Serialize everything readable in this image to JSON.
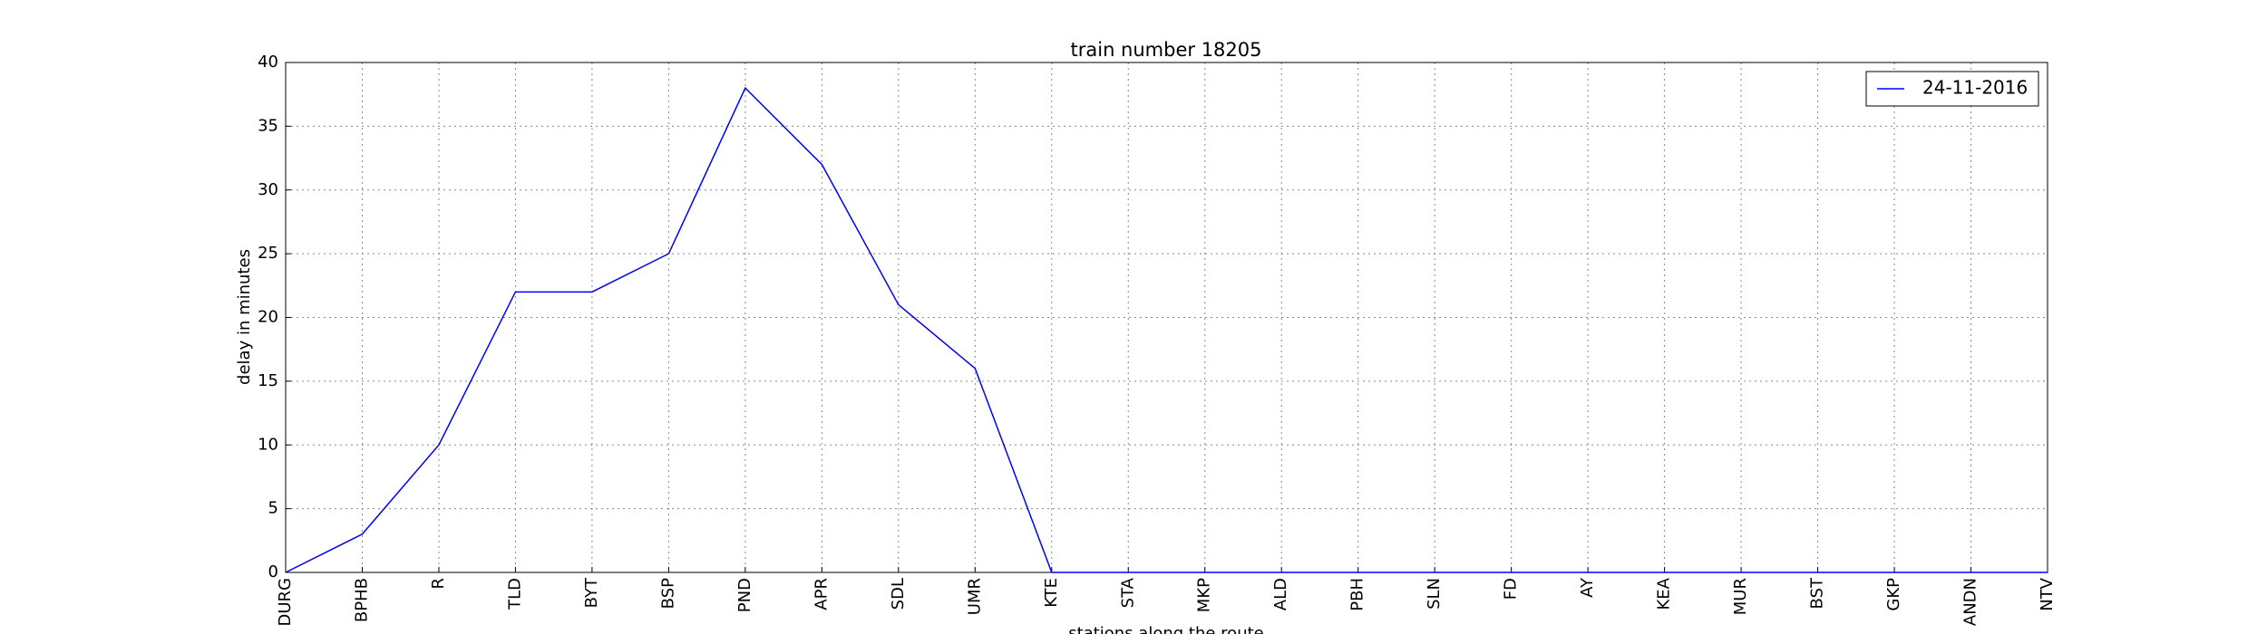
{
  "chart_data": {
    "type": "line",
    "title": "train number 18205",
    "x_label": "stations along the route",
    "y_label": "delay in minutes",
    "categories": [
      "DURG",
      "BPHB",
      "R",
      "TLD",
      "BYT",
      "BSP",
      "PND",
      "APR",
      "SDL",
      "UMR",
      "KTE",
      "STA",
      "MKP",
      "ALD",
      "PBH",
      "SLN",
      "FD",
      "AY",
      "KEA",
      "MUR",
      "BST",
      "GKP",
      "ANDN",
      "NTV"
    ],
    "series": [
      {
        "name": "24-11-2016",
        "color": "#0000ff",
        "values": [
          0,
          3,
          10,
          22,
          22,
          25,
          38,
          32,
          21,
          16,
          0,
          0,
          0,
          0,
          0,
          0,
          0,
          0,
          0,
          0,
          0,
          0,
          0,
          0
        ]
      }
    ],
    "ylim": [
      0,
      40
    ],
    "yticks": [
      0,
      5,
      10,
      15,
      20,
      25,
      30,
      35,
      40
    ],
    "grid": true,
    "legend": "upper right"
  }
}
